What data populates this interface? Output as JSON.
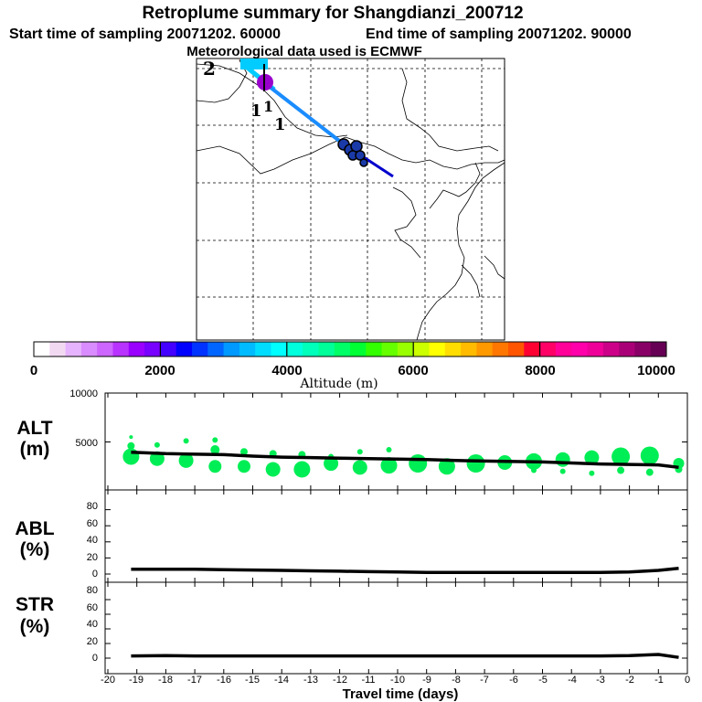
{
  "header": {
    "title": "Retroplume summary for Shangdianzi_200712",
    "start_label": "Start time of sampling 20071202. 60000",
    "end_label": "End time of sampling 20071202. 90000",
    "met_label": "Meteorological data used is ECMWF"
  },
  "map": {
    "number_labels": [
      "2",
      "1",
      "1",
      "1"
    ],
    "plume_colors": [
      "#00ccff",
      "#1a8cff",
      "#0000cc"
    ],
    "cluster_color": "#000080",
    "start_marker_color": "#9900cc"
  },
  "colorbar": {
    "title": "Altitude (m)",
    "tick_labels": [
      "0",
      "2000",
      "4000",
      "6000",
      "8000",
      "10000"
    ],
    "colors": [
      "#ffffff",
      "#f2d9f2",
      "#e6b3ff",
      "#d98cff",
      "#cc66ff",
      "#b833ff",
      "#9900ff",
      "#7700ff",
      "#4400ff",
      "#0000ff",
      "#0033ff",
      "#0066ff",
      "#0099ff",
      "#00bbff",
      "#00ddff",
      "#00ffff",
      "#00ffdd",
      "#00ffbb",
      "#00ff99",
      "#00ff66",
      "#00ff33",
      "#33ff00",
      "#66ff00",
      "#99ff00",
      "#ccff00",
      "#ffff00",
      "#ffdd00",
      "#ffbb00",
      "#ff9900",
      "#ff7700",
      "#ff5500",
      "#ff0033",
      "#ff0066",
      "#ff0099",
      "#ff00aa",
      "#ee0099",
      "#cc0088",
      "#aa0077",
      "#880066",
      "#660055"
    ]
  },
  "chart_data": {
    "type": "line",
    "x_label": "Travel time (days)",
    "x_ticks": [
      "-20",
      "-19",
      "-18",
      "-17",
      "-16",
      "-15",
      "-14",
      "-13",
      "-12",
      "-11",
      "-10",
      "-9",
      "-8",
      "-7",
      "-6",
      "-5",
      "-4",
      "-3",
      "-2",
      "-1",
      "0"
    ],
    "xlim": [
      -20,
      0
    ],
    "panels": [
      {
        "label_top": "ALT",
        "label_bottom": "(m)",
        "ylim": [
          0,
          10000
        ],
        "y_ticks": [
          "10000",
          "5000"
        ],
        "tick_values": [
          10000,
          5000
        ],
        "line_color": "#000000",
        "dot_color": "#00ee55",
        "series": {
          "x": [
            -19.2,
            -18,
            -17,
            -16,
            -15,
            -14,
            -13,
            -12,
            -11,
            -10,
            -9,
            -8,
            -7,
            -6,
            -5,
            -4,
            -3,
            -2,
            -1,
            -0.3
          ],
          "y": [
            3950,
            3800,
            3750,
            3700,
            3550,
            3450,
            3400,
            3350,
            3300,
            3250,
            3200,
            3100,
            3050,
            3000,
            2950,
            2850,
            2750,
            2700,
            2650,
            2400
          ]
        },
        "plume_dots": {
          "x": [
            -19.2,
            -19.2,
            -19.2,
            -18.3,
            -18.3,
            -17.3,
            -17.3,
            -16.3,
            -16.3,
            -16.3,
            -15.3,
            -15.3,
            -14.3,
            -14.3,
            -13.3,
            -13.3,
            -12.3,
            -12.3,
            -11.3,
            -11.3,
            -10.3,
            -10.3,
            -9.3,
            -8.3,
            -7.3,
            -6.3,
            -5.3,
            -5.3,
            -4.3,
            -4.3,
            -3.3,
            -3.3,
            -2.3,
            -2.3,
            -1.3,
            -1.3,
            -0.3,
            -0.3
          ],
          "y": [
            3500,
            4600,
            5500,
            3300,
            4700,
            3100,
            5100,
            2500,
            4200,
            5200,
            2500,
            4000,
            2200,
            3800,
            2200,
            3700,
            2800,
            3500,
            2400,
            4000,
            2600,
            4200,
            2800,
            2500,
            2800,
            2900,
            3000,
            2100,
            3200,
            2000,
            3400,
            1800,
            3500,
            2100,
            3600,
            1900,
            2800,
            2200
          ],
          "size": [
            9,
            4,
            2,
            8,
            3,
            8,
            3,
            7,
            5,
            3,
            7,
            4,
            8,
            4,
            9,
            4,
            8,
            3,
            8,
            3,
            9,
            3,
            10,
            9,
            10,
            8,
            9,
            3,
            8,
            3,
            8,
            3,
            10,
            4,
            10,
            4,
            6,
            4
          ]
        }
      },
      {
        "label_top": "ABL",
        "label_bottom": "(%)",
        "ylim": [
          0,
          100
        ],
        "y_ticks": [
          "80",
          "60",
          "40",
          "20",
          "0"
        ],
        "tick_values": [
          80,
          60,
          40,
          20,
          0
        ],
        "line_color": "#000000",
        "series": {
          "x": [
            -19.2,
            -18,
            -17,
            -16,
            -15,
            -14,
            -13,
            -12,
            -11,
            -10,
            -9,
            -8,
            -7,
            -6,
            -5,
            -4,
            -3,
            -2,
            -1,
            -0.3
          ],
          "y": [
            6,
            6,
            6,
            5.5,
            5,
            4.5,
            4,
            3.5,
            3,
            2.5,
            2,
            2,
            2,
            2,
            2,
            2,
            2,
            2.5,
            4.5,
            7
          ]
        }
      },
      {
        "label_top": "STR",
        "label_bottom": "(%)",
        "ylim": [
          0,
          100
        ],
        "y_ticks": [
          "80",
          "60",
          "40",
          "20",
          "0"
        ],
        "tick_values": [
          80,
          60,
          40,
          20,
          0
        ],
        "line_color": "#000000",
        "series": {
          "x": [
            -19.2,
            -18,
            -17,
            -16,
            -15,
            -14,
            -13,
            -12,
            -11,
            -10,
            -9,
            -8,
            -7,
            -6,
            -5,
            -4,
            -3,
            -2,
            -1,
            -0.3
          ],
          "y": [
            3,
            3.5,
            3,
            3,
            3,
            3,
            3,
            3,
            3,
            3,
            3,
            3,
            3,
            3,
            3,
            3,
            3,
            3.5,
            5,
            1
          ]
        }
      }
    ]
  }
}
